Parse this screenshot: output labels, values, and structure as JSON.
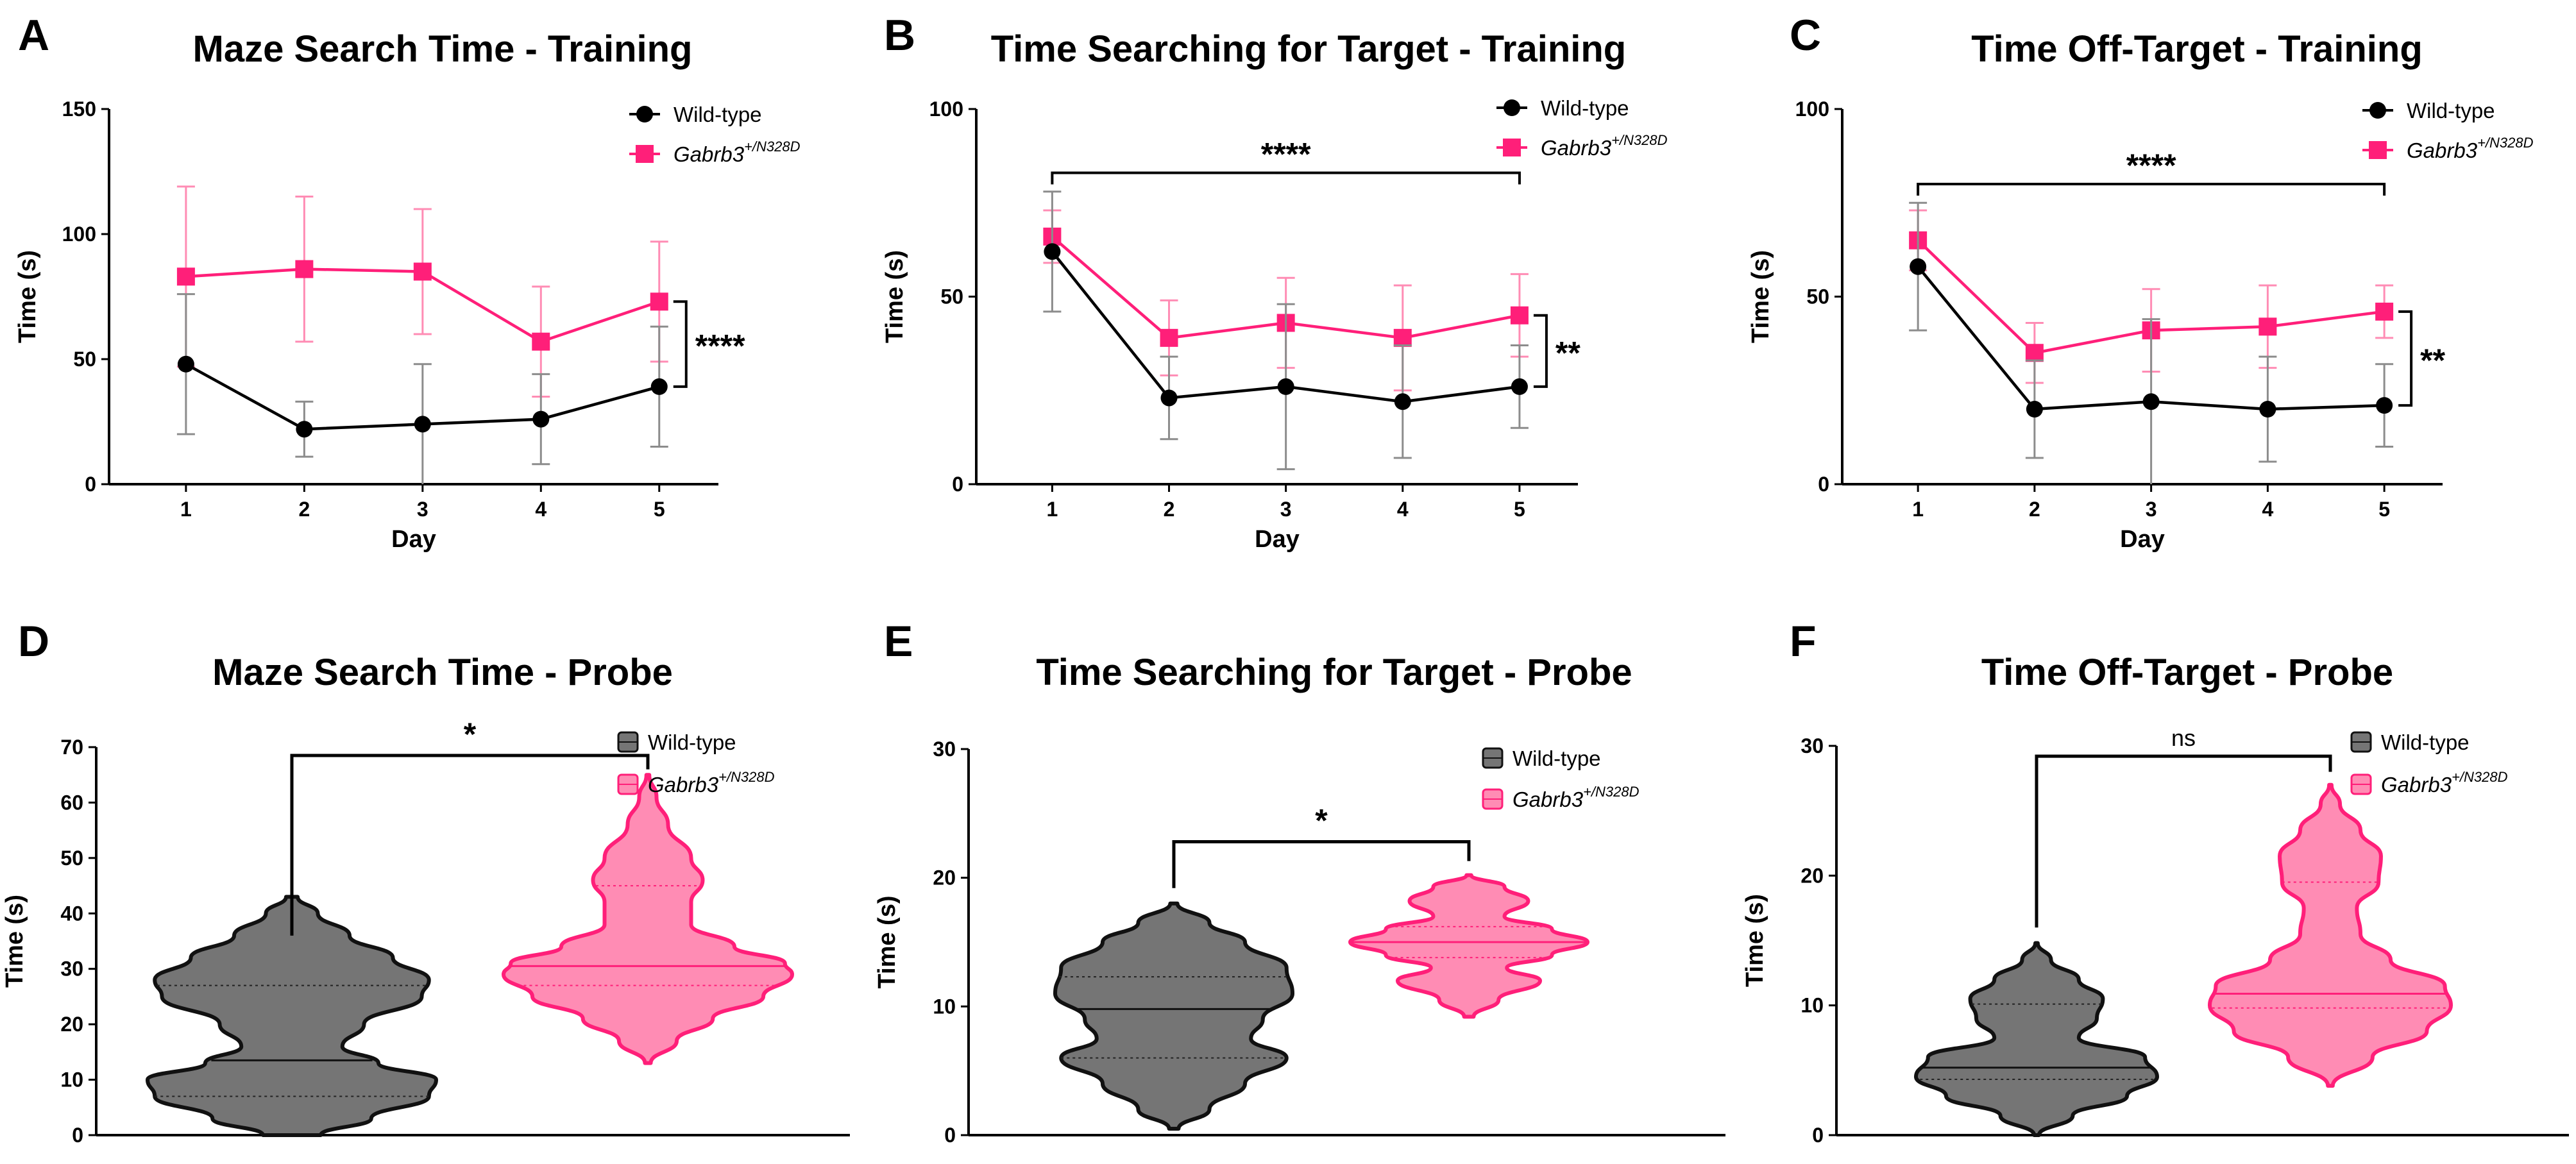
{
  "figure": {
    "background": "#ffffff",
    "colors": {
      "wildtype": "#000000",
      "mutant": "#ff1f79",
      "wildtype_violin_fill": "#757575",
      "mutant_violin_fill": "#ff8cb4",
      "errorbar_wildtype": "#8c8c8c",
      "errorbar_mutant": "#ff8cb4"
    }
  },
  "chart_data": [
    {
      "id": "A",
      "letter": "A",
      "type": "line",
      "title": "Maze Search Time -  Training",
      "xlabel": "Day",
      "ylabel": "Time (s)",
      "x": [
        1,
        2,
        3,
        4,
        5
      ],
      "xlim": [
        0.35,
        5.5
      ],
      "ylim": [
        0,
        150
      ],
      "yticks": [
        0,
        50,
        100,
        150
      ],
      "series": [
        {
          "name": "Wild-type",
          "marker": "circle",
          "values": [
            48,
            22,
            24,
            26,
            39
          ],
          "error": [
            28,
            11,
            24,
            18,
            24
          ]
        },
        {
          "name": "Gabrb3",
          "superscript": "+/N328D",
          "marker": "square",
          "values": [
            83,
            86,
            85,
            57,
            73
          ],
          "error": [
            36,
            29,
            25,
            22,
            24
          ]
        }
      ],
      "legend_position": "top-right",
      "significance": [
        {
          "type": "vertical",
          "x": 5,
          "y1": 39,
          "y2": 73,
          "label": "****"
        }
      ]
    },
    {
      "id": "B",
      "letter": "B",
      "type": "line",
      "title": "Time Searching for Target - Training",
      "xlabel": "Day",
      "ylabel": "Time (s)",
      "x": [
        1,
        2,
        3,
        4,
        5
      ],
      "xlim": [
        0.35,
        5.5
      ],
      "ylim": [
        0,
        100
      ],
      "yticks": [
        0,
        50,
        100
      ],
      "series": [
        {
          "name": "Wild-type",
          "marker": "circle",
          "values": [
            62,
            23,
            26,
            22,
            26
          ],
          "error": [
            16,
            11,
            22,
            15,
            11
          ]
        },
        {
          "name": "Gabrb3",
          "superscript": "+/N328D",
          "marker": "square",
          "values": [
            66,
            39,
            43,
            39,
            45
          ],
          "error": [
            7,
            10,
            12,
            14,
            11
          ]
        }
      ],
      "legend_position": "top-right",
      "significance": [
        {
          "type": "horizontal",
          "x1": 1,
          "x2": 5,
          "y": 83,
          "label": "****"
        },
        {
          "type": "vertical",
          "x": 5,
          "y1": 26,
          "y2": 45,
          "label": "**"
        }
      ]
    },
    {
      "id": "C",
      "letter": "C",
      "type": "line",
      "title": "Time Off-Target -  Training",
      "xlabel": "Day",
      "ylabel": "Time (s)",
      "x": [
        1,
        2,
        3,
        4,
        5
      ],
      "xlim": [
        0.35,
        5.5
      ],
      "ylim": [
        0,
        100
      ],
      "yticks": [
        0,
        50,
        100
      ],
      "series": [
        {
          "name": "Wild-type",
          "marker": "circle",
          "values": [
            58,
            20,
            22,
            20,
            21
          ],
          "error": [
            17,
            13,
            22,
            14,
            11
          ]
        },
        {
          "name": "Gabrb3",
          "superscript": "+/N328D",
          "marker": "square",
          "values": [
            65,
            35,
            41,
            42,
            46
          ],
          "error": [
            8,
            8,
            11,
            11,
            7
          ]
        }
      ],
      "legend_position": "top-right",
      "significance": [
        {
          "type": "horizontal",
          "x1": 1,
          "x2": 5,
          "y": 80,
          "label": "****"
        },
        {
          "type": "vertical",
          "x": 5,
          "y1": 21,
          "y2": 46,
          "label": "**"
        }
      ]
    },
    {
      "id": "D",
      "letter": "D",
      "type": "violin",
      "title": "Maze Search Time - Probe",
      "xlabel": "",
      "ylabel": "Time (s)",
      "ylim": [
        0,
        70
      ],
      "yticks": [
        0,
        10,
        20,
        30,
        40,
        50,
        60,
        70
      ],
      "groups": [
        {
          "name": "Wild-type",
          "median": 13.5,
          "q1": 7,
          "q3": 27,
          "min": 0,
          "max": 43,
          "profile": [
            [
              0,
              0.2
            ],
            [
              3,
              0.55
            ],
            [
              7,
              0.95
            ],
            [
              10,
              1.0
            ],
            [
              13,
              0.6
            ],
            [
              16,
              0.35
            ],
            [
              20,
              0.5
            ],
            [
              25,
              0.9
            ],
            [
              28,
              0.95
            ],
            [
              32,
              0.7
            ],
            [
              36,
              0.4
            ],
            [
              40,
              0.18
            ],
            [
              43,
              0.04
            ]
          ]
        },
        {
          "name": "Gabrb3",
          "superscript": "+/N328D",
          "median": 30.5,
          "q1": 27,
          "q3": 45,
          "min": 13,
          "max": 65,
          "profile": [
            [
              13,
              0.02
            ],
            [
              17,
              0.2
            ],
            [
              21,
              0.45
            ],
            [
              25,
              0.8
            ],
            [
              29,
              1.0
            ],
            [
              31,
              0.95
            ],
            [
              34,
              0.6
            ],
            [
              38,
              0.3
            ],
            [
              42,
              0.3
            ],
            [
              46,
              0.38
            ],
            [
              50,
              0.3
            ],
            [
              56,
              0.14
            ],
            [
              61,
              0.06
            ],
            [
              65,
              0.01
            ]
          ]
        }
      ],
      "legend_position": "top-right",
      "significance": [
        {
          "type": "bracket",
          "y": 68.5,
          "left_y": 36,
          "right_y": 66,
          "label": "*"
        }
      ]
    },
    {
      "id": "E",
      "letter": "E",
      "type": "violin",
      "title": "Time Searching for Target - Probe",
      "xlabel": "",
      "ylabel": "Time (s)",
      "ylim": [
        0,
        30
      ],
      "yticks": [
        0,
        10,
        20,
        30
      ],
      "groups": [
        {
          "name": "Wild-type",
          "median": 9.8,
          "q1": 6,
          "q3": 12.3,
          "min": 0.5,
          "max": 18,
          "profile": [
            [
              0.5,
              0.04
            ],
            [
              2,
              0.3
            ],
            [
              4,
              0.6
            ],
            [
              6,
              0.95
            ],
            [
              7.5,
              0.65
            ],
            [
              9,
              0.75
            ],
            [
              11,
              1.0
            ],
            [
              13,
              0.95
            ],
            [
              15,
              0.6
            ],
            [
              16.5,
              0.3
            ],
            [
              18,
              0.03
            ]
          ]
        },
        {
          "name": "Gabrb3",
          "superscript": "+/N328D",
          "median": 15,
          "q1": 13.8,
          "q3": 16.2,
          "min": 9.2,
          "max": 20.2,
          "profile": [
            [
              9.2,
              0.04
            ],
            [
              10.5,
              0.25
            ],
            [
              12,
              0.6
            ],
            [
              13,
              0.32
            ],
            [
              14,
              0.7
            ],
            [
              15,
              1.0
            ],
            [
              16,
              0.7
            ],
            [
              17,
              0.3
            ],
            [
              18.2,
              0.5
            ],
            [
              19.3,
              0.3
            ],
            [
              20.2,
              0.02
            ]
          ]
        }
      ],
      "legend_position": "top-right",
      "significance": [
        {
          "type": "bracket",
          "y": 22.8,
          "left_y": 19.2,
          "right_y": 21.3,
          "label": "*"
        }
      ]
    },
    {
      "id": "F",
      "letter": "F",
      "type": "violin",
      "title": "Time Off-Target - Probe",
      "xlabel": "",
      "ylabel": "Time (s)",
      "ylim": [
        0,
        30
      ],
      "yticks": [
        0,
        10,
        20,
        30
      ],
      "groups": [
        {
          "name": "Wild-type",
          "median": 5.2,
          "q1": 4.3,
          "q3": 10.1,
          "min": 0,
          "max": 14.8,
          "profile": [
            [
              0,
              0.02
            ],
            [
              1.5,
              0.3
            ],
            [
              3,
              0.75
            ],
            [
              4.5,
              1.0
            ],
            [
              6,
              0.9
            ],
            [
              7.5,
              0.35
            ],
            [
              9,
              0.5
            ],
            [
              10.5,
              0.55
            ],
            [
              12,
              0.35
            ],
            [
              13.5,
              0.12
            ],
            [
              14.8,
              0.01
            ]
          ]
        },
        {
          "name": "Gabrb3",
          "superscript": "+/N328D",
          "median": 10.9,
          "q1": 9.8,
          "q3": 19.5,
          "min": 3.8,
          "max": 27,
          "profile": [
            [
              3.8,
              0.02
            ],
            [
              6,
              0.35
            ],
            [
              8,
              0.8
            ],
            [
              10,
              1.0
            ],
            [
              11.5,
              0.95
            ],
            [
              13.5,
              0.5
            ],
            [
              15.5,
              0.25
            ],
            [
              17.5,
              0.22
            ],
            [
              19.5,
              0.4
            ],
            [
              21.5,
              0.42
            ],
            [
              23.5,
              0.25
            ],
            [
              25.5,
              0.08
            ],
            [
              27,
              0.01
            ]
          ]
        }
      ],
      "legend_position": "top-right",
      "significance": [
        {
          "type": "bracket",
          "y": 29.2,
          "left_y": 16,
          "right_y": 28,
          "label": "ns"
        }
      ]
    }
  ]
}
